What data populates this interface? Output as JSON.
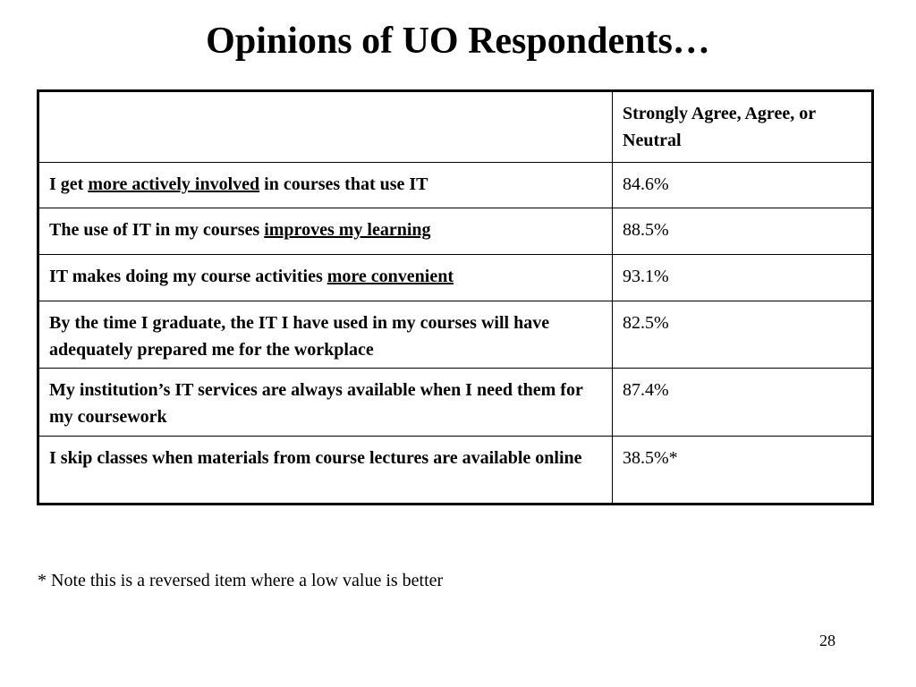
{
  "title": "Opinions of UO Respondents…",
  "table": {
    "header": "Strongly Agree, Agree, or Neutral",
    "rows": [
      {
        "parts": [
          {
            "text": "I get "
          },
          {
            "text": "more actively involved",
            "underline": true
          },
          {
            "text": " in courses that use IT"
          }
        ],
        "value": "84.6%"
      },
      {
        "parts": [
          {
            "text": "The use of IT in my courses "
          },
          {
            "text": "improves my learning",
            "underline": true
          }
        ],
        "value": "88.5%"
      },
      {
        "parts": [
          {
            "text": "IT makes doing my course activities "
          },
          {
            "text": "more convenient",
            "underline": true
          }
        ],
        "value": "93.1%"
      },
      {
        "parts": [
          {
            "text": "By the time I graduate, the IT I have used in my courses will have adequately prepared me for the workplace"
          }
        ],
        "value": "82.5%"
      },
      {
        "parts": [
          {
            "text": "My institution’s IT services are always available when I need them for my coursework"
          }
        ],
        "value": "87.4%"
      },
      {
        "parts": [
          {
            "text": "I skip classes when materials from course lectures are available online"
          }
        ],
        "value": "38.5%*"
      }
    ]
  },
  "note": "* Note this is a reversed item where a low value is better",
  "page_number": "28"
}
